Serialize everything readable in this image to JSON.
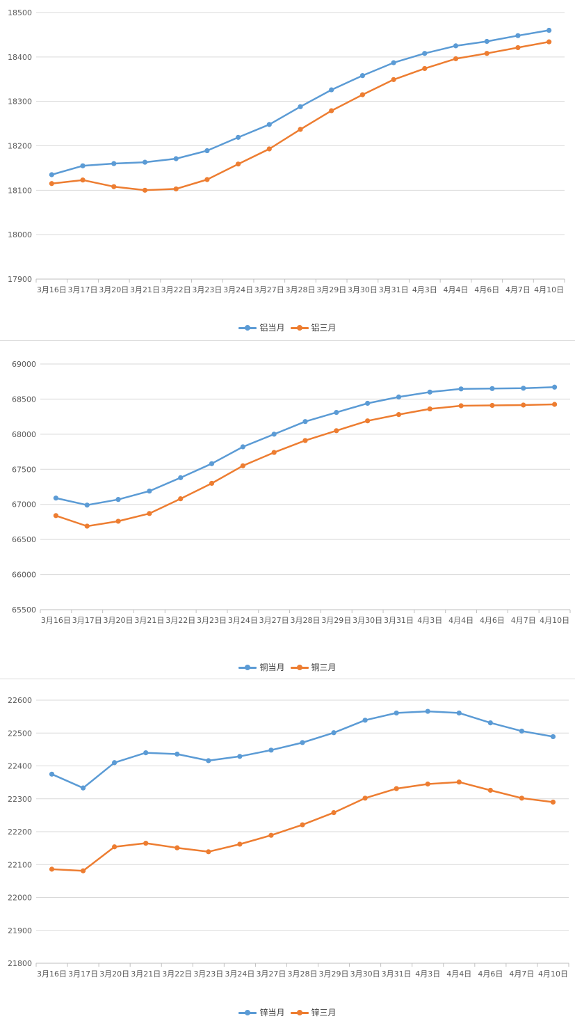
{
  "colors": {
    "series1": "#5B9BD5",
    "series2": "#ED7D31",
    "grid": "#d9d9d9",
    "axis": "#bfbfbf",
    "tick_text": "#595959"
  },
  "chart_data": [
    {
      "type": "line",
      "x": [
        "3月16日",
        "3月17日",
        "3月20日",
        "3月21日",
        "3月22日",
        "3月23日",
        "3月24日",
        "3月27日",
        "3月28日",
        "3月29日",
        "3月30日",
        "3月31日",
        "4月3日",
        "4月4日",
        "4月6日",
        "4月7日",
        "4月10日"
      ],
      "ylim": [
        17900,
        18500
      ],
      "yticks": [
        17900,
        18000,
        18100,
        18200,
        18300,
        18400,
        18500
      ],
      "grid": true,
      "legend": "bottom",
      "series": [
        {
          "name": "铝当月",
          "values": [
            18135,
            18155,
            18160,
            18163,
            18171,
            18189,
            18219,
            18248,
            18288,
            18326,
            18358,
            18387,
            18408,
            18425,
            18435,
            18448,
            18460
          ]
        },
        {
          "name": "铝三月",
          "values": [
            18115,
            18123,
            18108,
            18100,
            18103,
            18124,
            18159,
            18193,
            18237,
            18279,
            18315,
            18349,
            18374,
            18396,
            18408,
            18421,
            18434
          ]
        }
      ]
    },
    {
      "type": "line",
      "x": [
        "3月16日",
        "3月17日",
        "3月20日",
        "3月21日",
        "3月22日",
        "3月23日",
        "3月24日",
        "3月27日",
        "3月28日",
        "3月29日",
        "3月30日",
        "3月31日",
        "4月3日",
        "4月4日",
        "4月6日",
        "4月7日",
        "4月10日"
      ],
      "ylim": [
        65500,
        69000
      ],
      "yticks": [
        65500,
        66000,
        66500,
        67000,
        67500,
        68000,
        68500,
        69000
      ],
      "grid": true,
      "legend": "bottom",
      "series": [
        {
          "name": "铜当月",
          "values": [
            67090,
            66990,
            67070,
            67190,
            67380,
            67580,
            67820,
            68000,
            68180,
            68310,
            68440,
            68530,
            68600,
            68645,
            68650,
            68655,
            68670
          ]
        },
        {
          "name": "铜三月",
          "values": [
            66840,
            66690,
            66760,
            66870,
            67080,
            67300,
            67550,
            67740,
            67910,
            68050,
            68190,
            68280,
            68360,
            68405,
            68410,
            68415,
            68425
          ]
        }
      ]
    },
    {
      "type": "line",
      "x": [
        "3月16日",
        "3月17日",
        "3月20日",
        "3月21日",
        "3月22日",
        "3月23日",
        "3月24日",
        "3月27日",
        "3月28日",
        "3月29日",
        "3月30日",
        "3月31日",
        "4月3日",
        "4月4日",
        "4月6日",
        "4月7日",
        "4月10日"
      ],
      "ylim": [
        21800,
        22600
      ],
      "yticks": [
        21800,
        21900,
        22000,
        22100,
        22200,
        22300,
        22400,
        22500,
        22600
      ],
      "grid": true,
      "legend": "bottom",
      "series": [
        {
          "name": "锌当月",
          "values": [
            22375,
            22333,
            22410,
            22440,
            22436,
            22416,
            22429,
            22448,
            22471,
            22501,
            22539,
            22561,
            22566,
            22561,
            22531,
            22506,
            22489
          ]
        },
        {
          "name": "锌三月",
          "values": [
            22086,
            22081,
            22154,
            22165,
            22151,
            22139,
            22162,
            22189,
            22221,
            22258,
            22302,
            22331,
            22345,
            22351,
            22326,
            22302,
            22290
          ]
        }
      ]
    }
  ]
}
